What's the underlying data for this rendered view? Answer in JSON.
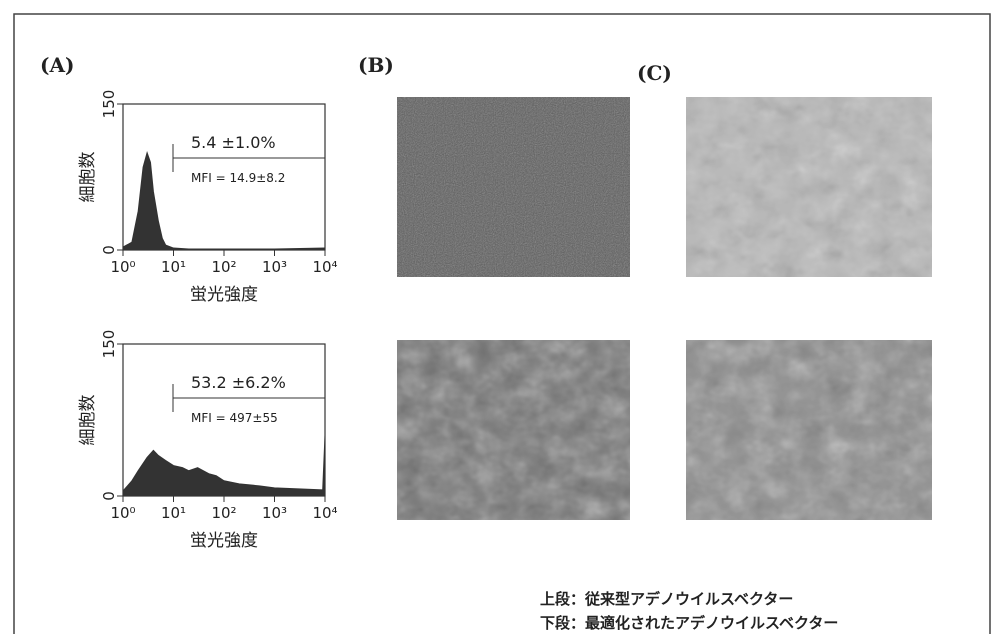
{
  "panel_labels": [
    "(A)",
    "(B)",
    "(C)"
  ],
  "chart_data": [
    {
      "type": "area",
      "ylabel": "細胞数",
      "xlabel": "蛍光強度",
      "x": [
        1,
        1.5,
        2,
        2.5,
        3,
        3.5,
        4,
        5,
        6,
        7,
        10,
        20,
        100,
        1000,
        10000
      ],
      "values": [
        3,
        8,
        40,
        85,
        100,
        90,
        60,
        30,
        12,
        5,
        2,
        1,
        1,
        1,
        2
      ],
      "color": "#333333",
      "log_x": true,
      "xlim": [
        1,
        10000
      ],
      "ylim": [
        0,
        150
      ],
      "xticks": [
        {
          "value": 1,
          "label": "10⁰"
        },
        {
          "value": 10,
          "label": "10¹"
        },
        {
          "value": 100,
          "label": "10²"
        },
        {
          "value": 1000,
          "label": "10³"
        },
        {
          "value": 10000,
          "label": "10⁴"
        }
      ],
      "yticks": [
        0,
        150
      ],
      "annotations": [
        "5.4 ±1.0%",
        "MFI = 14.9±8.2"
      ]
    },
    {
      "type": "area",
      "ylabel": "細胞数",
      "xlabel": "蛍光強度",
      "x": [
        1,
        1.5,
        2,
        3,
        4,
        5,
        7,
        10,
        15,
        20,
        30,
        50,
        70,
        100,
        200,
        500,
        1000,
        3000,
        9000,
        10000
      ],
      "values": [
        5,
        15,
        25,
        38,
        45,
        40,
        35,
        30,
        28,
        25,
        28,
        22,
        20,
        15,
        12,
        10,
        8,
        7,
        6,
        60
      ],
      "color": "#333333",
      "log_x": true,
      "xlim": [
        1,
        10000
      ],
      "ylim": [
        0,
        150
      ],
      "xticks": [
        {
          "value": 1,
          "label": "10⁰"
        },
        {
          "value": 10,
          "label": "10¹"
        },
        {
          "value": 100,
          "label": "10²"
        },
        {
          "value": 1000,
          "label": "10³"
        },
        {
          "value": 10000,
          "label": "10⁴"
        }
      ],
      "yticks": [
        0,
        150
      ],
      "annotations": [
        "53.2 ±6.2%",
        "MFI = 497±55"
      ]
    }
  ],
  "caption": [
    "上段：従来型アデノウイルスベクター",
    "下段：最適化されたアデノウイルスベクター"
  ]
}
